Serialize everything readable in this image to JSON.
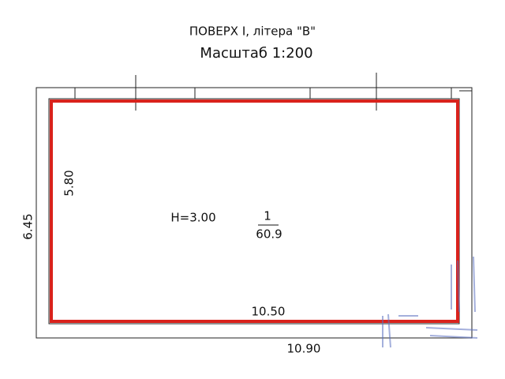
{
  "header": {
    "title": "ПОВЕРХ I, літера \"В\"",
    "scale": "Масштаб 1:200"
  },
  "plan": {
    "outer_height": "6.45",
    "inner_height": "5.80",
    "inner_length": "10.50",
    "outer_length": "10.90",
    "room": {
      "ceiling_height": "H=3.00",
      "number": "1",
      "area": "60.9"
    }
  }
}
